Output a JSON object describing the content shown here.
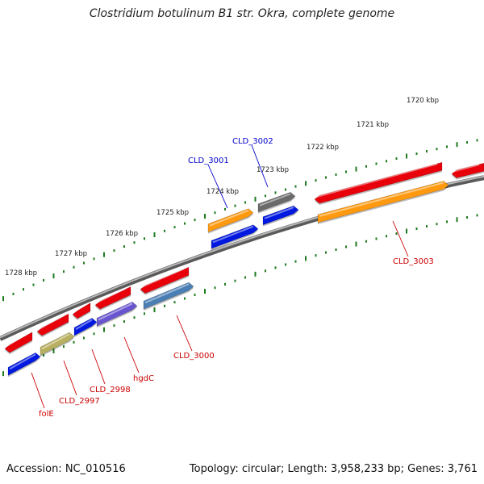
{
  "title": "Clostridium botulinum B1 str. Okra, complete genome",
  "footer": {
    "accession": "Accession: NC_010516",
    "summary": "Topology: circular; Length: 3,958,233 bp; Genes: 3,761"
  },
  "colors": {
    "backbone": "#7a7a7a",
    "tick": "#1f7a1f",
    "red": "#e8000a",
    "blue": "#0018e0",
    "orange": "#ff9a10",
    "gray": "#6a6a6a",
    "olive": "#b8b060",
    "purple": "#6a55d0",
    "steel": "#4a7fb5",
    "label_red": "#cc0000",
    "label_blue": "#0000cc"
  },
  "scale": {
    "unit": "kbp",
    "labels": [
      "1720 kbp",
      "1721 kbp",
      "1722 kbp",
      "1723 kbp",
      "1724 kbp",
      "1725 kbp",
      "1726 kbp",
      "1727 kbp",
      "1728 kbp"
    ]
  },
  "gene_labels": [
    {
      "name": "CLD_3002",
      "color": "blue"
    },
    {
      "name": "CLD_3001",
      "color": "blue"
    },
    {
      "name": "CLD_3003",
      "color": "red"
    },
    {
      "name": "CLD_3000",
      "color": "red"
    },
    {
      "name": "hgdC",
      "color": "red"
    },
    {
      "name": "CLD_2998",
      "color": "red"
    },
    {
      "name": "CLD_2997",
      "color": "red"
    },
    {
      "name": "folE",
      "color": "red"
    }
  ]
}
